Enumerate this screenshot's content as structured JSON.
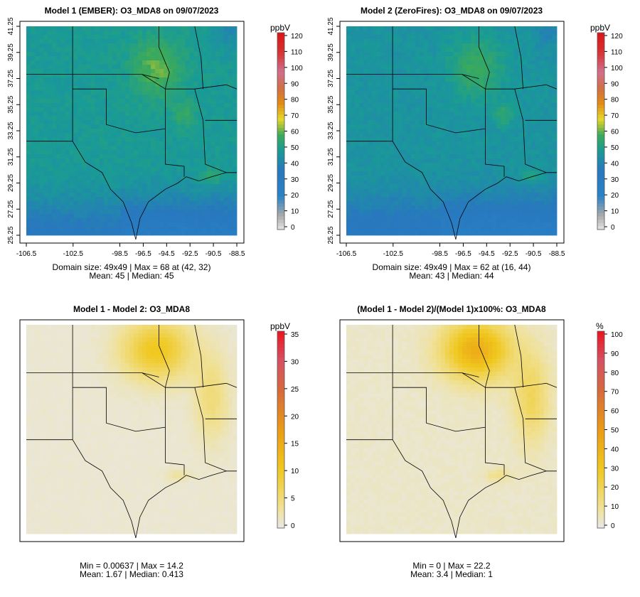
{
  "panels": [
    {
      "title": "Model 1 (EMBER): O3_MDA8 on 09/07/2023",
      "stats_line1": "Domain size: 49x49 | Max = 68 at (42, 32)",
      "stats_line2": "Mean: 45 |  Median: 45",
      "unit": "ppbV",
      "colorbar_ticks": [
        "0",
        "10",
        "20",
        "30",
        "40",
        "50",
        "60",
        "70",
        "80",
        "90",
        "100",
        "110",
        "120"
      ],
      "palette": "ozone",
      "show_axes": true
    },
    {
      "title": "Model 2 (ZeroFires): O3_MDA8 on 09/07/2023",
      "stats_line1": "Domain size: 49x49 | Max = 62 at (16, 44)",
      "stats_line2": "Mean: 43 |  Median: 44",
      "unit": "ppbV",
      "colorbar_ticks": [
        "0",
        "10",
        "20",
        "30",
        "40",
        "50",
        "60",
        "70",
        "80",
        "90",
        "100",
        "110",
        "120"
      ],
      "palette": "ozone",
      "show_axes": true
    },
    {
      "title": "Model 1 - Model 2: O3_MDA8",
      "stats_line1": "Min = 0.00637 | Max = 14.2",
      "stats_line2": "Mean: 1.67 |  Median: 0.413",
      "unit": "ppbV",
      "colorbar_ticks": [
        "0",
        "5",
        "10",
        "15",
        "20",
        "25",
        "30",
        "35"
      ],
      "palette": "diff",
      "show_axes": false
    },
    {
      "title": "(Model 1 - Model 2)/(Model 1)x100%: O3_MDA8",
      "stats_line1": "Min = 0 | Max = 22.2",
      "stats_line2": "Mean: 3.4 |  Median: 1",
      "unit": "%",
      "colorbar_ticks": [
        "0",
        "10",
        "20",
        "30",
        "40",
        "50",
        "60",
        "70",
        "80",
        "90",
        "100"
      ],
      "palette": "diff",
      "show_axes": false
    }
  ],
  "x_tick_labels": [
    "-106.5",
    "-102.5",
    "-98.5",
    "-96.5",
    "-94.5",
    "-92.5",
    "-90.5",
    "-88.5"
  ],
  "y_tick_labels": [
    "25.25",
    "27.25",
    "29.25",
    "31.25",
    "33.25",
    "35.25",
    "37.25",
    "39.25",
    "41.25"
  ],
  "chart_data": [
    {
      "type": "heatmap",
      "title": "Model 1 (EMBER): O3_MDA8 on 09/07/2023",
      "grid": "49x49",
      "xlim": [
        -106.5,
        -88.5
      ],
      "ylim": [
        25.25,
        41.25
      ],
      "colorbar_label": "ppbV",
      "colorbar_range": [
        0,
        120
      ],
      "max": 68,
      "max_at": [
        42,
        32
      ],
      "mean": 45,
      "median": 45
    },
    {
      "type": "heatmap",
      "title": "Model 2 (ZeroFires): O3_MDA8 on 09/07/2023",
      "grid": "49x49",
      "xlim": [
        -106.5,
        -88.5
      ],
      "ylim": [
        25.25,
        41.25
      ],
      "colorbar_label": "ppbV",
      "colorbar_range": [
        0,
        120
      ],
      "max": 62,
      "max_at": [
        16,
        44
      ],
      "mean": 43,
      "median": 44
    },
    {
      "type": "heatmap",
      "title": "Model 1 - Model 2: O3_MDA8",
      "colorbar_label": "ppbV",
      "colorbar_range": [
        0,
        35
      ],
      "min": 0.00637,
      "max": 14.2,
      "mean": 1.67,
      "median": 0.413
    },
    {
      "type": "heatmap",
      "title": "(Model 1 - Model 2)/(Model 1)x100%: O3_MDA8",
      "colorbar_label": "%",
      "colorbar_range": [
        0,
        100
      ],
      "min": 0,
      "max": 22.2,
      "mean": 3.4,
      "median": 1
    }
  ]
}
